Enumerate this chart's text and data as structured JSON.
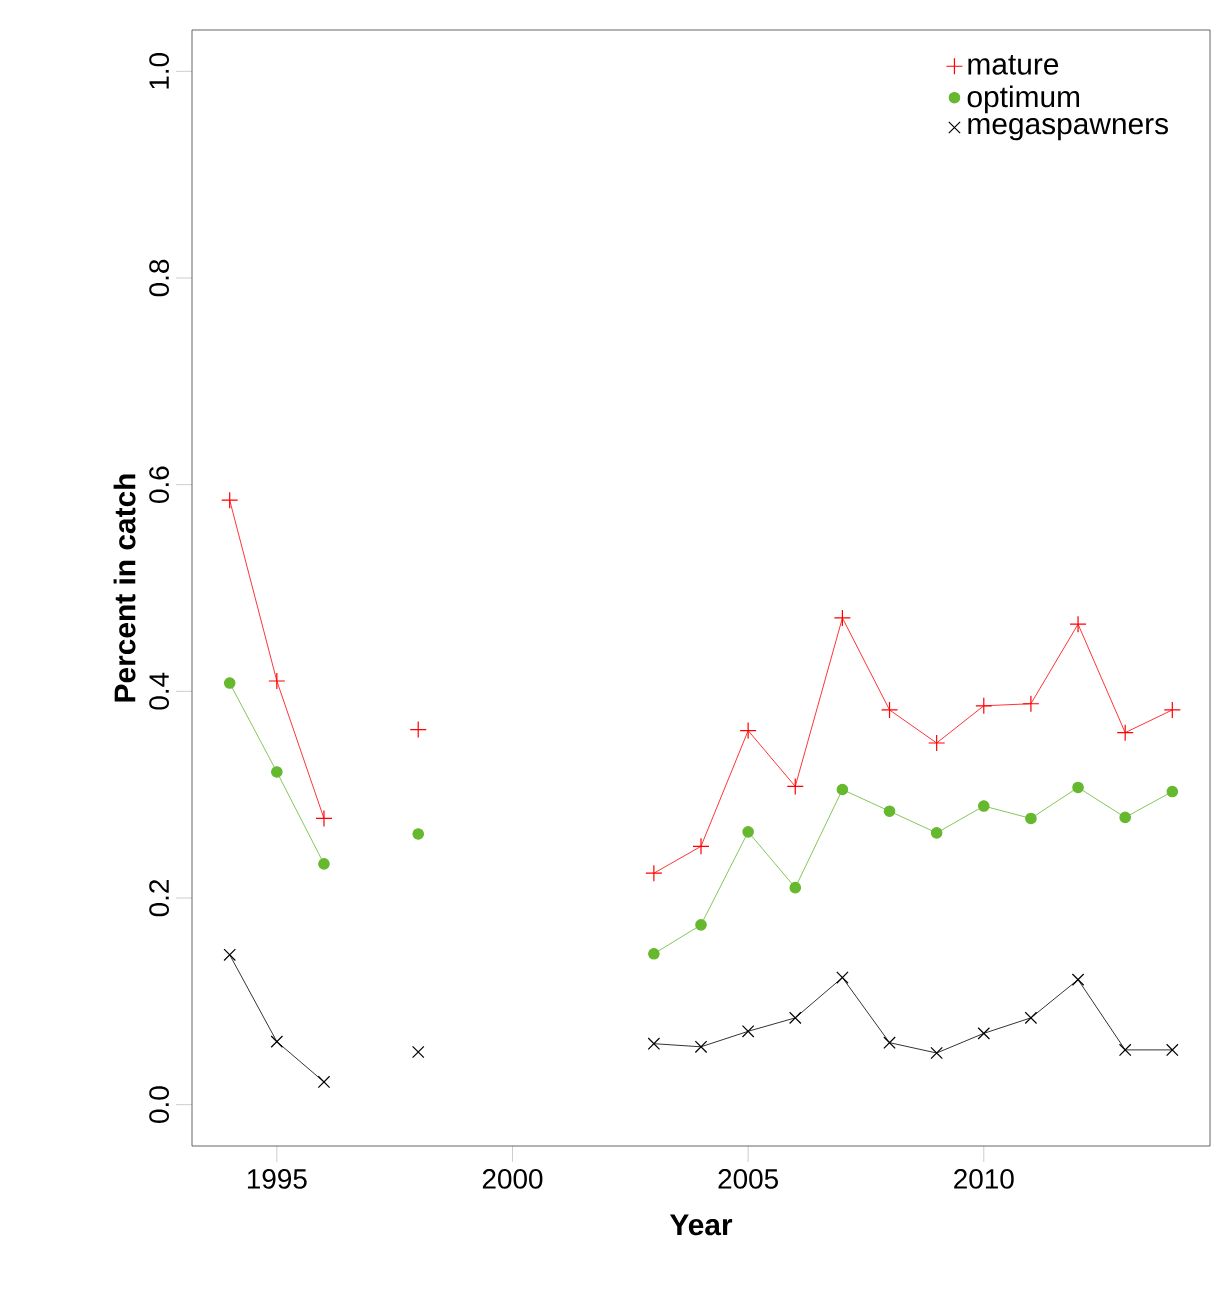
{
  "chart_data": {
    "type": "line",
    "xlabel": "Year",
    "ylabel": "Percent in catch",
    "x": [
      1994,
      1995,
      1996,
      1997,
      1998,
      1999,
      2000,
      2001,
      2002,
      2003,
      2004,
      2005,
      2006,
      2007,
      2008,
      2009,
      2010,
      2011,
      2012,
      2013,
      2014
    ],
    "series": [
      {
        "name": "mature",
        "color": "#ff0000",
        "marker": "cross",
        "values": [
          0.585,
          0.41,
          0.277,
          null,
          0.363,
          null,
          null,
          null,
          null,
          0.224,
          0.25,
          0.362,
          0.308,
          0.471,
          0.382,
          0.35,
          0.386,
          0.388,
          0.465,
          0.36,
          0.382
        ]
      },
      {
        "name": "optimum",
        "color": "#66b82e",
        "marker": "circle",
        "values": [
          0.408,
          0.322,
          0.233,
          null,
          0.262,
          null,
          null,
          null,
          null,
          0.146,
          0.174,
          0.264,
          0.21,
          0.305,
          0.284,
          0.263,
          0.289,
          0.277,
          0.307,
          0.278,
          0.303
        ]
      },
      {
        "name": "megaspawners",
        "color": "#000000",
        "marker": "x",
        "values": [
          0.145,
          0.061,
          0.022,
          null,
          0.051,
          null,
          null,
          null,
          null,
          0.059,
          0.056,
          0.071,
          0.084,
          0.123,
          0.06,
          0.05,
          0.069,
          0.084,
          0.121,
          0.053,
          0.053
        ]
      }
    ],
    "xlim": [
      1993.2,
      2014.8
    ],
    "ylim": [
      -0.04,
      1.04
    ],
    "xticks": [
      1995,
      2000,
      2005,
      2010
    ],
    "yticks": [
      {
        "value": 0,
        "label": "0.0"
      },
      0.2,
      0.4,
      0.6,
      0.8,
      {
        "value": 1,
        "label": "1.0"
      }
    ],
    "legend": "top right",
    "grid": false,
    "line_style": "solid"
  }
}
